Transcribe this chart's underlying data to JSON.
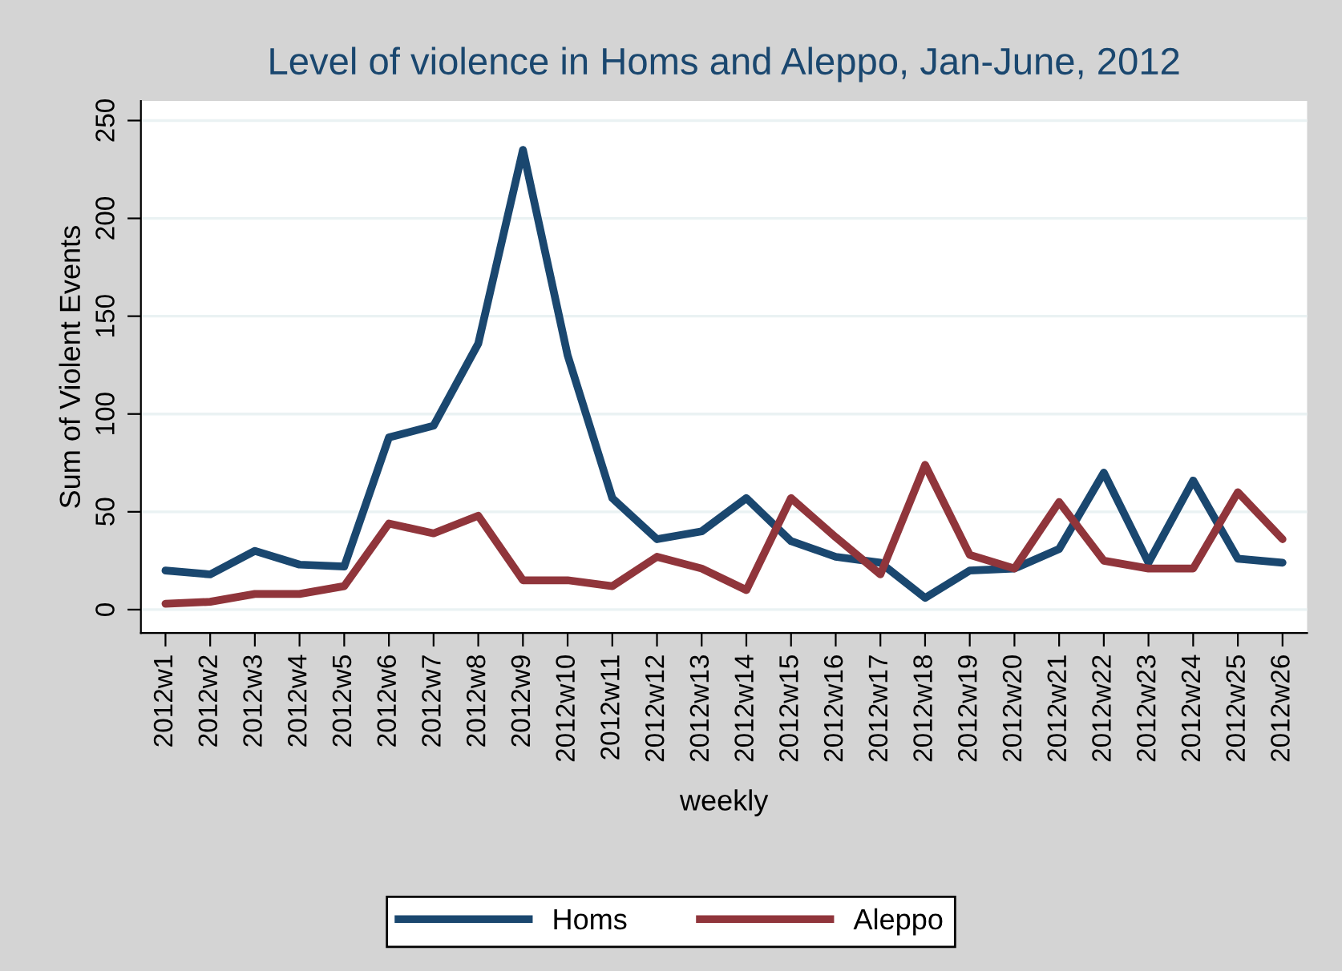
{
  "chart_data": {
    "type": "line",
    "title": "Level of violence in Homs and Aleppo, Jan-June, 2012",
    "xlabel": "weekly",
    "ylabel": "Sum of Violent Events",
    "categories": [
      "2012w1",
      "2012w2",
      "2012w3",
      "2012w4",
      "2012w5",
      "2012w6",
      "2012w7",
      "2012w8",
      "2012w9",
      "2012w10",
      "2012w11",
      "2012w12",
      "2012w13",
      "2012w14",
      "2012w15",
      "2012w16",
      "2012w17",
      "2012w18",
      "2012w19",
      "2012w20",
      "2012w21",
      "2012w22",
      "2012w23",
      "2012w24",
      "2012w25",
      "2012w26"
    ],
    "series": [
      {
        "name": "Homs",
        "color": "#1a476f",
        "values": [
          20,
          18,
          30,
          23,
          22,
          88,
          94,
          136,
          235,
          130,
          57,
          36,
          40,
          57,
          35,
          27,
          24,
          6,
          20,
          21,
          31,
          70,
          24,
          66,
          26,
          24
        ]
      },
      {
        "name": "Aleppo",
        "color": "#90353b",
        "values": [
          3,
          4,
          8,
          8,
          12,
          44,
          39,
          48,
          15,
          15,
          12,
          27,
          21,
          10,
          57,
          37,
          18,
          74,
          28,
          21,
          55,
          25,
          21,
          21,
          60,
          36
        ]
      }
    ],
    "ylim": [
      -12,
      260
    ],
    "yticks": [
      0,
      50,
      100,
      150,
      200,
      250
    ],
    "grid": "y",
    "legend": "bottom",
    "marker": "none",
    "line_style": "solid"
  }
}
